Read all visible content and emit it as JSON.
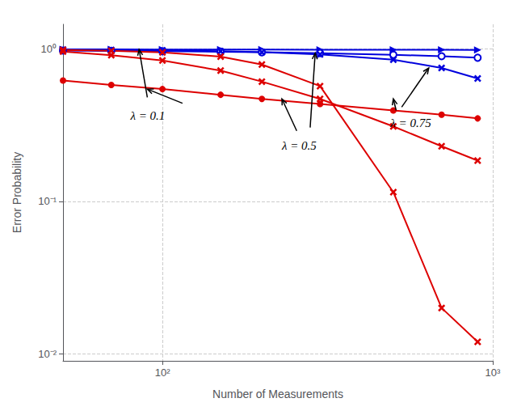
{
  "chart_data": {
    "type": "line",
    "log": true,
    "grid": true,
    "x_label": "Number of Measurements",
    "y_label": "Error Probability",
    "xlim": [
      50,
      1000
    ],
    "xticks": [
      {
        "value": 100,
        "label": "10²"
      },
      {
        "value": 1000,
        "label": "10³"
      }
    ],
    "ylim": [
      0.009,
      1.45
    ],
    "yticks": [
      {
        "value": 0.01,
        "label": "10⁻²"
      },
      {
        "value": 0.1,
        "label": "10⁻¹"
      },
      {
        "value": 1.0,
        "label": "10⁰"
      }
    ],
    "x": [
      50,
      70,
      100,
      150,
      200,
      300,
      500,
      700,
      900
    ],
    "series": [
      {
        "color": "#0000dd",
        "marker": "triangle-right",
        "values": [
          0.993,
          0.992,
          0.991,
          0.99,
          0.989,
          0.988,
          0.987,
          0.986,
          0.985
        ]
      },
      {
        "color": "#0000dd",
        "marker": "circle-open",
        "values": [
          0.975,
          0.97,
          0.965,
          0.958,
          0.95,
          0.938,
          0.915,
          0.895,
          0.875
        ]
      },
      {
        "color": "#0000dd",
        "marker": "x",
        "values": [
          0.99,
          0.985,
          0.978,
          0.965,
          0.95,
          0.92,
          0.85,
          0.75,
          0.64
        ]
      },
      {
        "color": "#dd0000",
        "marker": "circle",
        "values": [
          0.62,
          0.58,
          0.545,
          0.5,
          0.47,
          0.435,
          0.395,
          0.37,
          0.35
        ]
      },
      {
        "color": "#dd0000",
        "marker": "x",
        "values": [
          0.96,
          0.91,
          0.84,
          0.72,
          0.61,
          0.47,
          0.31,
          0.23,
          0.185
        ]
      },
      {
        "color": "#dd0000",
        "marker": "x",
        "values": [
          0.985,
          0.972,
          0.948,
          0.89,
          0.79,
          0.57,
          0.115,
          0.02,
          0.012
        ]
      }
    ],
    "annotations": [
      {
        "text": "λ = 0.1",
        "x": 80,
        "y": 0.4,
        "arrows": [
          {
            "from": [
              90,
              0.48
            ],
            "to": [
              85,
              0.991
            ]
          },
          {
            "from": [
              115,
              0.44
            ],
            "to": [
              90,
              0.545
            ]
          }
        ]
      },
      {
        "text": "λ = 0.5",
        "x": 230,
        "y": 0.255,
        "arrows": [
          {
            "from": [
              280,
              0.305
            ],
            "to": [
              290,
              0.938
            ]
          },
          {
            "from": [
              255,
              0.29
            ],
            "to": [
              230,
              0.47
            ]
          }
        ]
      },
      {
        "text": "λ = 0.75",
        "x": 490,
        "y": 0.36,
        "arrows": [
          {
            "from": [
              530,
              0.415
            ],
            "to": [
              640,
              0.75
            ]
          },
          {
            "from": [
              510,
              0.395
            ],
            "to": [
              500,
              0.47
            ]
          }
        ]
      }
    ]
  }
}
